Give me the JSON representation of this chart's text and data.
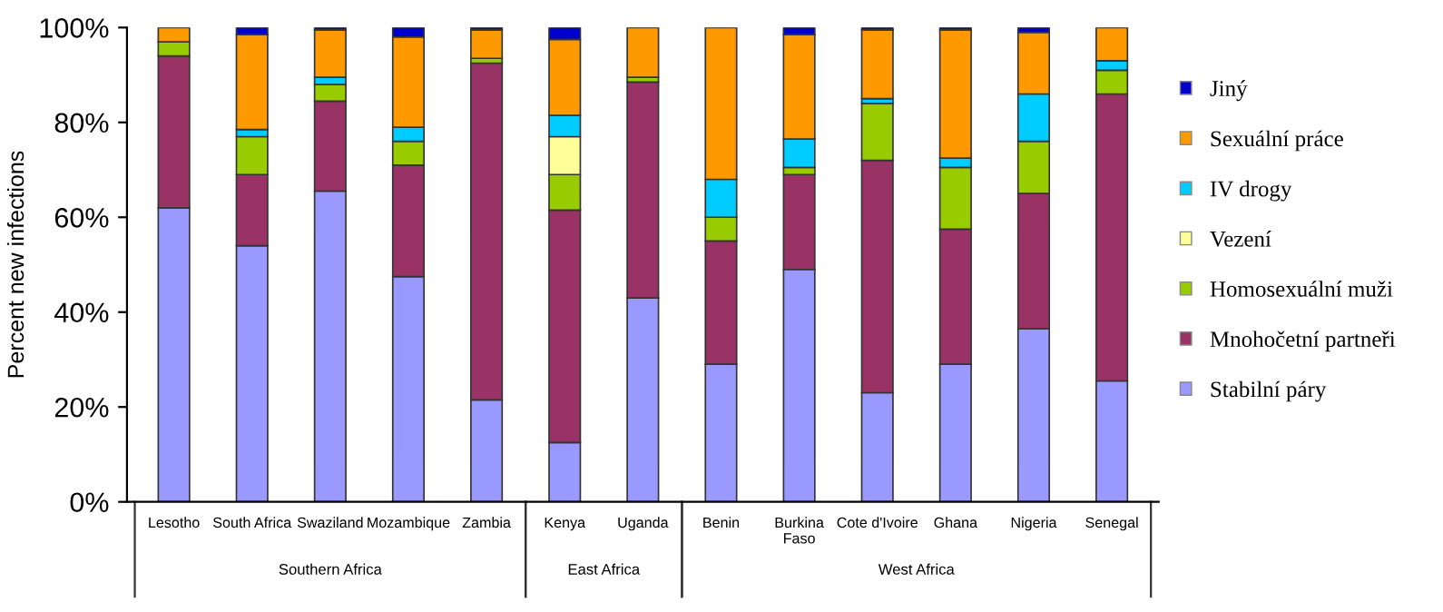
{
  "chart_data": {
    "type": "bar",
    "stacked": true,
    "ylabel": "Percent new infections",
    "categories": [
      "Lesotho",
      "South Africa",
      "Swaziland",
      "Mozambique",
      "Zambia",
      "Kenya",
      "Uganda",
      "Benin",
      "Burkina\nFaso",
      "Cote d'Ivoire",
      "Ghana",
      "Nigeria",
      "Senegal"
    ],
    "series": [
      {
        "name": "Stabilní páry",
        "color": "#9999ff",
        "values": [
          62,
          54,
          65.5,
          47.5,
          21.5,
          12.5,
          43,
          29,
          49,
          23,
          29,
          36.5,
          25.5
        ]
      },
      {
        "name": "Mnohočetní partneři",
        "color": "#993366",
        "values": [
          32,
          15,
          19,
          23.5,
          71,
          49,
          45.5,
          26,
          20,
          49,
          28.5,
          28.5,
          60.5
        ]
      },
      {
        "name": "Homosexuální muži",
        "color": "#99cc00",
        "values": [
          3,
          8,
          3.5,
          5,
          1,
          7.5,
          1,
          5,
          1.5,
          12,
          13,
          11,
          5
        ]
      },
      {
        "name": "Vezení",
        "color": "#ffff99",
        "values": [
          null,
          null,
          null,
          null,
          null,
          8,
          null,
          null,
          null,
          null,
          null,
          null,
          null
        ]
      },
      {
        "name": "IV drogy",
        "color": "#00ccff",
        "values": [
          null,
          1.5,
          1.5,
          3,
          null,
          4.5,
          null,
          8,
          6,
          1,
          2,
          10,
          2
        ]
      },
      {
        "name": "Sexuální práce",
        "color": "#ff9900",
        "values": [
          3,
          20,
          10,
          19,
          6,
          16,
          10.5,
          32,
          22,
          14.5,
          27,
          13,
          7
        ]
      },
      {
        "name": "Jiný",
        "color": "#0000cc",
        "values": [
          null,
          1.5,
          0.5,
          2,
          0.5,
          2.5,
          null,
          null,
          1.5,
          0.5,
          0.5,
          1,
          null
        ]
      }
    ],
    "ylim": [
      0,
      100
    ],
    "yticks": [
      {
        "value": 0,
        "label": "0%"
      },
      {
        "value": 20,
        "label": "20%"
      },
      {
        "value": 40,
        "label": "40%"
      },
      {
        "value": 60,
        "label": "60%"
      },
      {
        "value": 80,
        "label": "80%"
      },
      {
        "value": 100,
        "label": "100%"
      }
    ],
    "annotations": [
      "Southern Africa",
      "East Africa",
      "West Africa"
    ],
    "legend": "right",
    "grid": false
  }
}
